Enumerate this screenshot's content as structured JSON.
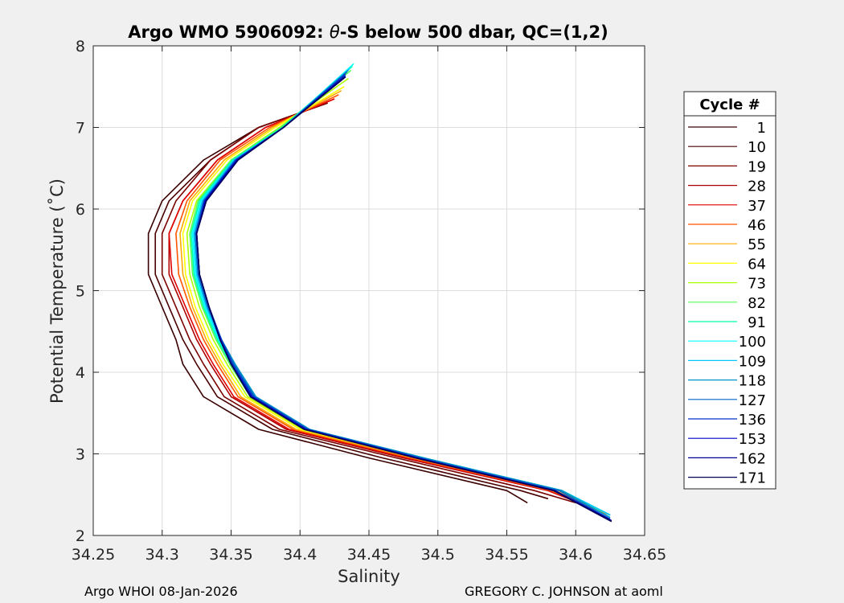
{
  "chart_data": {
    "type": "line",
    "title_prefix": "Argo WMO 5906092: ",
    "title_theta": "θ",
    "title_suffix": "-S below 500 dbar,  QC=(1,2)",
    "xlabel": "Salinity",
    "ylabel": "Potential Temperature (˚C)",
    "xlim": [
      34.25,
      34.65
    ],
    "ylim": [
      2,
      8
    ],
    "x_ticks": [
      "34.25",
      "34.3",
      "34.35",
      "34.4",
      "34.45",
      "34.5",
      "34.55",
      "34.6",
      "34.65"
    ],
    "y_ticks": [
      "2",
      "3",
      "4",
      "5",
      "6",
      "7",
      "8"
    ],
    "grid": true,
    "legend_position": "outside-right",
    "legend_title": "Cycle #",
    "series": [
      {
        "name": "1",
        "color": "#3a0000",
        "x": [
          34.42,
          34.37,
          34.33,
          34.3,
          34.29,
          34.29,
          34.3,
          34.31,
          34.315,
          34.33,
          34.37,
          34.45,
          34.55,
          34.565
        ],
        "y": [
          7.3,
          7.0,
          6.6,
          6.1,
          5.7,
          5.2,
          4.8,
          4.4,
          4.1,
          3.7,
          3.3,
          2.95,
          2.55,
          2.4
        ]
      },
      {
        "name": "10",
        "color": "#4a0000",
        "x": [
          34.42,
          34.37,
          34.335,
          34.305,
          34.295,
          34.295,
          34.305,
          34.315,
          34.325,
          34.34,
          34.38,
          34.46,
          34.56,
          34.58
        ],
        "y": [
          7.3,
          7.0,
          6.6,
          6.1,
          5.7,
          5.2,
          4.8,
          4.4,
          4.1,
          3.7,
          3.3,
          2.95,
          2.55,
          2.45
        ]
      },
      {
        "name": "19",
        "color": "#7a0000",
        "x": [
          34.42,
          34.37,
          34.335,
          34.31,
          34.3,
          34.3,
          34.31,
          34.32,
          34.33,
          34.345,
          34.385,
          34.47,
          34.57,
          34.6
        ],
        "y": [
          7.3,
          7.0,
          6.6,
          6.1,
          5.7,
          5.2,
          4.8,
          4.4,
          4.1,
          3.7,
          3.3,
          2.95,
          2.55,
          2.4
        ]
      },
      {
        "name": "28",
        "color": "#b00000",
        "x": [
          34.425,
          34.375,
          34.34,
          34.315,
          34.305,
          34.305,
          34.315,
          34.325,
          34.335,
          34.35,
          34.39,
          34.475,
          34.58,
          34.625
        ],
        "y": [
          7.35,
          7.0,
          6.6,
          6.1,
          5.7,
          5.2,
          4.8,
          4.4,
          4.1,
          3.7,
          3.3,
          2.95,
          2.55,
          2.25
        ]
      },
      {
        "name": "37",
        "color": "#e00000",
        "x": [
          34.425,
          34.375,
          34.34,
          34.315,
          34.305,
          34.307,
          34.317,
          34.327,
          34.337,
          34.352,
          34.392,
          34.478,
          34.58,
          34.625
        ],
        "y": [
          7.35,
          7.0,
          6.6,
          6.1,
          5.7,
          5.2,
          4.8,
          4.4,
          4.1,
          3.7,
          3.3,
          2.95,
          2.55,
          2.25
        ]
      },
      {
        "name": "46",
        "color": "#ff5500",
        "x": [
          34.428,
          34.378,
          34.342,
          34.318,
          34.31,
          34.312,
          34.32,
          34.33,
          34.34,
          34.355,
          34.395,
          34.48,
          34.582,
          34.625
        ],
        "y": [
          7.4,
          7.0,
          6.6,
          6.1,
          5.7,
          5.2,
          4.8,
          4.4,
          4.1,
          3.7,
          3.3,
          2.95,
          2.55,
          2.25
        ]
      },
      {
        "name": "55",
        "color": "#ffaa00",
        "x": [
          34.43,
          34.38,
          34.345,
          34.32,
          34.313,
          34.315,
          34.322,
          34.332,
          34.342,
          34.357,
          34.397,
          34.483,
          34.585,
          34.625
        ],
        "y": [
          7.45,
          7.0,
          6.6,
          6.1,
          5.7,
          5.2,
          4.8,
          4.4,
          4.1,
          3.7,
          3.3,
          2.95,
          2.55,
          2.25
        ]
      },
      {
        "name": "64",
        "color": "#ffff00",
        "x": [
          34.432,
          34.382,
          34.347,
          34.322,
          34.315,
          34.317,
          34.324,
          34.334,
          34.344,
          34.36,
          34.4,
          34.486,
          34.587,
          34.625
        ],
        "y": [
          7.5,
          7.0,
          6.6,
          6.1,
          5.7,
          5.2,
          4.8,
          4.4,
          4.1,
          3.7,
          3.3,
          2.95,
          2.55,
          2.25
        ]
      },
      {
        "name": "73",
        "color": "#aaff00",
        "x": [
          34.435,
          34.385,
          34.35,
          34.325,
          34.318,
          34.32,
          34.327,
          34.337,
          34.347,
          34.362,
          34.402,
          34.488,
          34.59,
          34.625
        ],
        "y": [
          7.6,
          7.0,
          6.6,
          6.1,
          5.7,
          5.2,
          4.8,
          4.4,
          4.1,
          3.7,
          3.3,
          2.95,
          2.55,
          2.25
        ]
      },
      {
        "name": "82",
        "color": "#55ff55",
        "x": [
          34.437,
          34.386,
          34.35,
          34.326,
          34.32,
          34.322,
          34.329,
          34.339,
          34.349,
          34.364,
          34.404,
          34.49,
          34.59,
          34.625
        ],
        "y": [
          7.7,
          7.0,
          6.6,
          6.1,
          5.7,
          5.2,
          4.8,
          4.4,
          4.1,
          3.7,
          3.3,
          2.95,
          2.55,
          2.25
        ]
      },
      {
        "name": "91",
        "color": "#00ffaa",
        "x": [
          34.438,
          34.387,
          34.351,
          34.327,
          34.321,
          34.323,
          34.33,
          34.34,
          34.35,
          34.365,
          34.405,
          34.49,
          34.59,
          34.625
        ],
        "y": [
          7.75,
          7.0,
          6.6,
          6.1,
          5.7,
          5.2,
          4.8,
          4.4,
          4.1,
          3.7,
          3.3,
          2.95,
          2.55,
          2.25
        ]
      },
      {
        "name": "100",
        "color": "#00ffff",
        "x": [
          34.439,
          34.388,
          34.352,
          34.328,
          34.322,
          34.324,
          34.331,
          34.341,
          34.351,
          34.366,
          34.406,
          34.49,
          34.59,
          34.625
        ],
        "y": [
          7.78,
          7.0,
          6.6,
          6.1,
          5.7,
          5.2,
          4.8,
          4.4,
          4.1,
          3.7,
          3.3,
          2.95,
          2.55,
          2.25
        ]
      },
      {
        "name": "109",
        "color": "#00c8ff",
        "x": [
          34.436,
          34.388,
          34.352,
          34.329,
          34.323,
          34.325,
          34.332,
          34.342,
          34.352,
          34.367,
          34.406,
          34.49,
          34.59,
          34.625
        ],
        "y": [
          7.72,
          7.0,
          6.6,
          6.1,
          5.7,
          5.2,
          4.8,
          4.4,
          4.1,
          3.7,
          3.3,
          2.95,
          2.55,
          2.25
        ]
      },
      {
        "name": "118",
        "color": "#0096c8",
        "x": [
          34.435,
          34.388,
          34.353,
          34.33,
          34.324,
          34.326,
          34.333,
          34.343,
          34.353,
          34.368,
          34.407,
          34.49,
          34.59,
          34.625
        ],
        "y": [
          7.7,
          7.0,
          6.6,
          6.1,
          5.7,
          5.2,
          4.8,
          4.4,
          4.1,
          3.7,
          3.3,
          2.95,
          2.55,
          2.22
        ]
      },
      {
        "name": "127",
        "color": "#0064c8",
        "x": [
          34.434,
          34.388,
          34.353,
          34.33,
          34.324,
          34.326,
          34.333,
          34.343,
          34.352,
          34.367,
          34.406,
          34.488,
          34.588,
          34.625
        ],
        "y": [
          7.68,
          7.0,
          6.6,
          6.1,
          5.7,
          5.2,
          4.8,
          4.4,
          4.1,
          3.7,
          3.3,
          2.95,
          2.55,
          2.2
        ]
      },
      {
        "name": "136",
        "color": "#0032c8",
        "x": [
          34.433,
          34.388,
          34.354,
          34.331,
          34.325,
          34.327,
          34.334,
          34.343,
          34.351,
          34.366,
          34.405,
          34.486,
          34.585,
          34.625
        ],
        "y": [
          7.65,
          7.0,
          6.6,
          6.1,
          5.7,
          5.2,
          4.8,
          4.4,
          4.1,
          3.7,
          3.3,
          2.95,
          2.55,
          2.2
        ]
      },
      {
        "name": "153",
        "color": "#0000c8",
        "x": [
          34.433,
          34.388,
          34.354,
          34.331,
          34.325,
          34.327,
          34.334,
          34.342,
          34.35,
          34.365,
          34.404,
          34.485,
          34.585,
          34.626
        ],
        "y": [
          7.63,
          7.0,
          6.6,
          6.1,
          5.7,
          5.2,
          4.8,
          4.4,
          4.1,
          3.7,
          3.3,
          2.95,
          2.55,
          2.18
        ]
      },
      {
        "name": "162",
        "color": "#000096",
        "x": [
          34.433,
          34.388,
          34.355,
          34.332,
          34.325,
          34.327,
          34.334,
          34.342,
          34.35,
          34.364,
          34.403,
          34.484,
          34.584,
          34.626
        ],
        "y": [
          7.62,
          7.0,
          6.6,
          6.1,
          5.7,
          5.2,
          4.8,
          4.4,
          4.1,
          3.7,
          3.3,
          2.95,
          2.55,
          2.18
        ]
      },
      {
        "name": "171",
        "color": "#00005a",
        "x": [
          34.433,
          34.388,
          34.355,
          34.332,
          34.325,
          34.327,
          34.334,
          34.342,
          34.35,
          34.364,
          34.403,
          34.484,
          34.584,
          34.626
        ],
        "y": [
          7.62,
          7.0,
          6.6,
          6.1,
          5.7,
          5.2,
          4.8,
          4.4,
          4.1,
          3.7,
          3.3,
          2.95,
          2.55,
          2.17
        ]
      }
    ]
  },
  "footer": {
    "left": "Argo WHOI 08-Jan-2026",
    "right": "GREGORY C. JOHNSON at aoml"
  }
}
